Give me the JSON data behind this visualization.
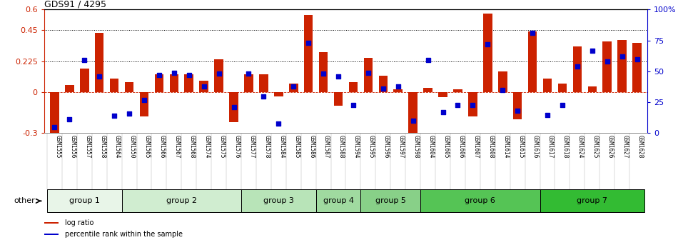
{
  "title": "GDS91 / 4295",
  "samples": [
    "GSM1555",
    "GSM1556",
    "GSM1557",
    "GSM1558",
    "GSM1564",
    "GSM1550",
    "GSM1565",
    "GSM1566",
    "GSM1567",
    "GSM1568",
    "GSM1574",
    "GSM1575",
    "GSM1576",
    "GSM1577",
    "GSM1578",
    "GSM1584",
    "GSM1585",
    "GSM1586",
    "GSM1587",
    "GSM1588",
    "GSM1594",
    "GSM1595",
    "GSM1596",
    "GSM1597",
    "GSM1598",
    "GSM1604",
    "GSM1605",
    "GSM1606",
    "GSM1607",
    "GSM1608",
    "GSM1614",
    "GSM1615",
    "GSM1616",
    "GSM1617",
    "GSM1618",
    "GSM1624",
    "GSM1625",
    "GSM1626",
    "GSM1627",
    "GSM1628"
  ],
  "log_ratio": [
    -0.3,
    0.05,
    0.17,
    0.43,
    0.1,
    0.07,
    -0.18,
    0.13,
    0.13,
    0.13,
    0.08,
    0.24,
    -0.22,
    0.13,
    0.13,
    -0.03,
    0.06,
    0.56,
    0.29,
    -0.1,
    0.07,
    0.25,
    0.12,
    0.02,
    -0.32,
    0.03,
    -0.04,
    0.02,
    -0.18,
    0.57,
    0.15,
    -0.2,
    0.44,
    0.1,
    0.06,
    0.33,
    0.04,
    0.37,
    0.38,
    0.36
  ],
  "percentile": [
    0.05,
    0.11,
    0.59,
    0.46,
    0.14,
    0.16,
    0.27,
    0.47,
    0.49,
    0.47,
    0.38,
    0.48,
    0.21,
    0.48,
    0.3,
    0.08,
    0.38,
    0.73,
    0.48,
    0.46,
    0.23,
    0.49,
    0.36,
    0.38,
    0.1,
    0.59,
    0.17,
    0.23,
    0.23,
    0.72,
    0.35,
    0.18,
    0.81,
    0.15,
    0.23,
    0.54,
    0.67,
    0.58,
    0.62,
    0.6
  ],
  "groups": [
    {
      "label": "group 1",
      "start": 0,
      "end": 5,
      "color": "#e8f5e8"
    },
    {
      "label": "group 2",
      "start": 5,
      "end": 13,
      "color": "#d0edd0"
    },
    {
      "label": "group 3",
      "start": 13,
      "end": 18,
      "color": "#b8e4b8"
    },
    {
      "label": "group 4",
      "start": 18,
      "end": 21,
      "color": "#a0daa0"
    },
    {
      "label": "group 5",
      "start": 21,
      "end": 25,
      "color": "#88d088"
    },
    {
      "label": "group 6",
      "start": 25,
      "end": 33,
      "color": "#55c455"
    },
    {
      "label": "group 7",
      "start": 33,
      "end": 40,
      "color": "#33bb33"
    }
  ],
  "bar_color": "#cc2200",
  "dot_color": "#0000cc",
  "ylim_left": [
    -0.3,
    0.6
  ],
  "ylim_right": [
    0,
    100
  ],
  "yticks_left": [
    -0.3,
    0.0,
    0.225,
    0.45,
    0.6
  ],
  "yticks_right": [
    0,
    25,
    50,
    75,
    100
  ],
  "ytick_labels_left": [
    "-0.3",
    "0",
    "0.225",
    "0.45",
    "0.6"
  ],
  "ytick_labels_right": [
    "0",
    "25",
    "50",
    "75",
    "100%"
  ],
  "hlines": [
    0.225,
    0.45
  ],
  "bar_width": 0.6,
  "dot_size": 18,
  "xlim": [
    -0.7,
    39.7
  ]
}
